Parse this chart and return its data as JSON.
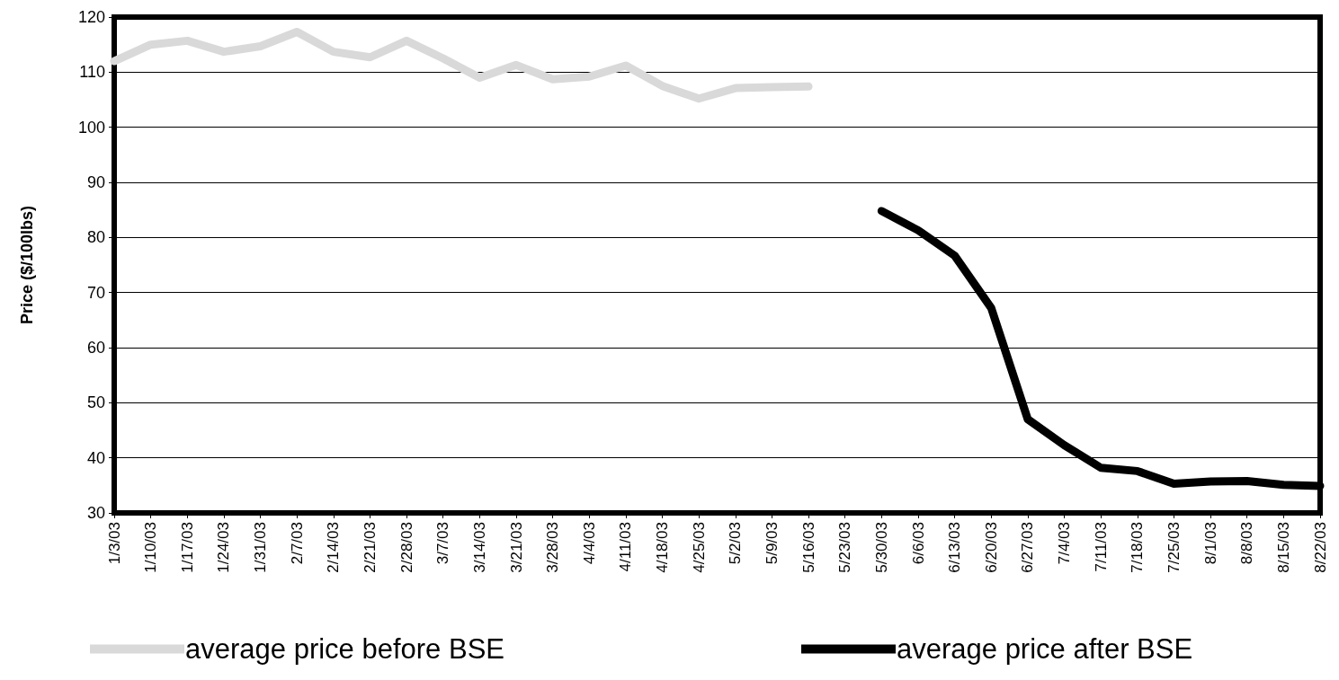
{
  "chart_data": {
    "type": "line",
    "ylabel": "Price ($/100lbs)",
    "categories": [
      "1/3/03",
      "1/10/03",
      "1/17/03",
      "1/24/03",
      "1/31/03",
      "2/7/03",
      "2/14/03",
      "2/21/03",
      "2/28/03",
      "3/7/03",
      "3/14/03",
      "3/21/03",
      "3/28/03",
      "4/4/03",
      "4/11/03",
      "4/18/03",
      "4/25/03",
      "5/2/03",
      "5/9/03",
      "5/16/03",
      "5/23/03",
      "5/30/03",
      "6/6/03",
      "6/13/03",
      "6/20/03",
      "6/27/03",
      "7/4/03",
      "7/11/03",
      "7/18/03",
      "7/25/03",
      "8/1/03",
      "8/8/03",
      "8/15/03",
      "8/22/03"
    ],
    "series": [
      {
        "name": "average price before BSE",
        "color": "#d9d9d9",
        "values": [
          112,
          115,
          115.7,
          113.7,
          114.7,
          117.3,
          113.7,
          112.7,
          115.7,
          112.5,
          109,
          111.3,
          108.7,
          109.2,
          111.2,
          107.5,
          105.2,
          107.1,
          107.3,
          107.4,
          null,
          null,
          null,
          null,
          null,
          null,
          null,
          null,
          null,
          null,
          null,
          null,
          null,
          null
        ]
      },
      {
        "name": "average price after BSE",
        "color": "#000000",
        "values": [
          null,
          null,
          null,
          null,
          null,
          null,
          null,
          null,
          null,
          null,
          null,
          null,
          null,
          null,
          null,
          null,
          null,
          null,
          null,
          null,
          null,
          84.8,
          81.3,
          76.7,
          67.2,
          47,
          42.3,
          38.2,
          37.6,
          35.3,
          35.7,
          35.8,
          35.1,
          34.9
        ]
      }
    ],
    "ylim": [
      30,
      120
    ],
    "yticks": [
      30,
      40,
      50,
      60,
      70,
      80,
      90,
      100,
      110,
      120
    ],
    "grid": "y",
    "legend": "bottom",
    "line_style": "solid"
  }
}
